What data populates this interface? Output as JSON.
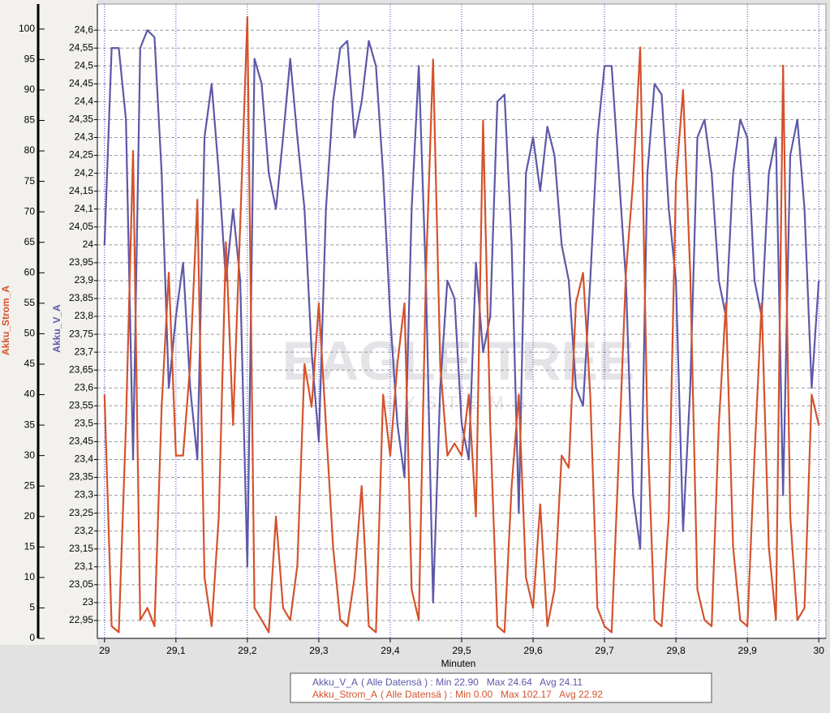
{
  "chart_data": {
    "type": "line",
    "xlabel": "Minuten",
    "ylabel": "Akku_Strom_A",
    "y2label": "Akku_V_A",
    "xlim": [
      28.99,
      30.01
    ],
    "xticks": [
      29,
      {
        "value": 29.1,
        "label": "29,1"
      },
      {
        "value": 29.2,
        "label": "29,2"
      },
      {
        "value": 29.3,
        "label": "29,3"
      },
      {
        "value": 29.4,
        "label": "29,4"
      },
      {
        "value": 29.5,
        "label": "29,5"
      },
      {
        "value": 29.6,
        "label": "29,6"
      },
      {
        "value": 29.7,
        "label": "29,7"
      },
      {
        "value": 29.8,
        "label": "29,8"
      },
      {
        "value": 29.9,
        "label": "29,9"
      },
      30
    ],
    "ylim": [
      0,
      104.1
    ],
    "yticks": [
      0,
      5,
      10,
      15,
      20,
      25,
      30,
      35,
      40,
      45,
      50,
      55,
      60,
      65,
      70,
      75,
      80,
      85,
      90,
      95,
      100
    ],
    "y2lim": [
      22.9,
      24.673
    ],
    "y2ticks": [
      {
        "value": 22.95,
        "label": "22,95"
      },
      23,
      {
        "value": 23.05,
        "label": "23,05"
      },
      {
        "value": 23.1,
        "label": "23,1"
      },
      {
        "value": 23.15,
        "label": "23,15"
      },
      {
        "value": 23.2,
        "label": "23,2"
      },
      {
        "value": 23.25,
        "label": "23,25"
      },
      {
        "value": 23.3,
        "label": "23,3"
      },
      {
        "value": 23.35,
        "label": "23,35"
      },
      {
        "value": 23.4,
        "label": "23,4"
      },
      {
        "value": 23.45,
        "label": "23,45"
      },
      {
        "value": 23.5,
        "label": "23,5"
      },
      {
        "value": 23.55,
        "label": "23,55"
      },
      {
        "value": 23.6,
        "label": "23,6"
      },
      {
        "value": 23.65,
        "label": "23,65"
      },
      {
        "value": 23.7,
        "label": "23,7"
      },
      {
        "value": 23.75,
        "label": "23,75"
      },
      {
        "value": 23.8,
        "label": "23,8"
      },
      {
        "value": 23.85,
        "label": "23,85"
      },
      {
        "value": 23.9,
        "label": "23,9"
      },
      {
        "value": 23.95,
        "label": "23,95"
      },
      24,
      {
        "value": 24.05,
        "label": "24,05"
      },
      {
        "value": 24.1,
        "label": "24,1"
      },
      {
        "value": 24.15,
        "label": "24,15"
      },
      {
        "value": 24.2,
        "label": "24,2"
      },
      {
        "value": 24.25,
        "label": "24,25"
      },
      {
        "value": 24.3,
        "label": "24,3"
      },
      {
        "value": 24.35,
        "label": "24,35"
      },
      {
        "value": 24.4,
        "label": "24,4"
      },
      {
        "value": 24.45,
        "label": "24,45"
      },
      {
        "value": 24.5,
        "label": "24,5"
      },
      {
        "value": 24.55,
        "label": "24,55"
      },
      {
        "value": 24.6,
        "label": "24,6"
      }
    ],
    "grid": true,
    "x": [
      29.0,
      29.01,
      29.02,
      29.03,
      29.04,
      29.05,
      29.06,
      29.07,
      29.08,
      29.09,
      29.1,
      29.11,
      29.12,
      29.13,
      29.14,
      29.15,
      29.16,
      29.17,
      29.18,
      29.19,
      29.2,
      29.21,
      29.22,
      29.23,
      29.24,
      29.25,
      29.26,
      29.27,
      29.28,
      29.29,
      29.3,
      29.31,
      29.32,
      29.33,
      29.34,
      29.35,
      29.36,
      29.37,
      29.38,
      29.39,
      29.4,
      29.41,
      29.42,
      29.43,
      29.44,
      29.45,
      29.46,
      29.47,
      29.48,
      29.49,
      29.5,
      29.51,
      29.52,
      29.53,
      29.54,
      29.55,
      29.56,
      29.57,
      29.58,
      29.59,
      29.6,
      29.61,
      29.62,
      29.63,
      29.64,
      29.65,
      29.66,
      29.67,
      29.68,
      29.69,
      29.7,
      29.71,
      29.72,
      29.73,
      29.74,
      29.75,
      29.76,
      29.77,
      29.78,
      29.79,
      29.8,
      29.81,
      29.82,
      29.83,
      29.84,
      29.85,
      29.86,
      29.87,
      29.88,
      29.89,
      29.9,
      29.91,
      29.92,
      29.93,
      29.94,
      29.95,
      29.96,
      29.97,
      29.98,
      29.99,
      30.0
    ],
    "series": [
      {
        "name": "Akku_V_A",
        "color": "#5d58a8",
        "axis": "y2",
        "summary": "( Alle Datensä ) : Min 22.90   Max 24.64   Avg 24.11",
        "values": [
          24.0,
          24.55,
          24.55,
          24.35,
          23.4,
          24.55,
          24.6,
          24.58,
          24.2,
          23.6,
          23.8,
          23.95,
          23.6,
          23.4,
          24.3,
          24.45,
          24.2,
          23.9,
          24.1,
          23.9,
          23.1,
          24.52,
          24.45,
          24.2,
          24.1,
          24.3,
          24.52,
          24.3,
          24.1,
          23.7,
          23.45,
          24.1,
          24.4,
          24.55,
          24.57,
          24.3,
          24.4,
          24.57,
          24.5,
          24.2,
          23.8,
          23.5,
          23.35,
          24.1,
          24.5,
          23.9,
          23.0,
          23.6,
          23.9,
          23.85,
          23.5,
          23.4,
          23.95,
          23.7,
          23.8,
          24.4,
          24.42,
          24.0,
          23.25,
          24.2,
          24.3,
          24.15,
          24.33,
          24.25,
          24.0,
          23.9,
          23.6,
          23.55,
          23.9,
          24.3,
          24.5,
          24.5,
          24.2,
          23.9,
          23.3,
          23.15,
          24.2,
          24.45,
          24.42,
          24.1,
          23.9,
          23.2,
          23.6,
          24.3,
          24.35,
          24.2,
          23.9,
          23.8,
          24.2,
          24.35,
          24.3,
          23.9,
          23.8,
          24.2,
          24.3,
          23.3,
          24.25,
          24.35,
          24.1,
          23.6,
          23.9
        ]
      },
      {
        "name": "Akku_Strom_A",
        "color": "#d4522c",
        "axis": "y",
        "summary": "( Alle Datensä ) : Min 0.00   Max 102.17   Avg 22.92",
        "values": [
          40,
          2,
          1,
          35,
          80,
          3,
          5,
          2,
          38,
          60,
          30,
          30,
          45,
          72,
          10,
          2,
          20,
          65,
          35,
          68,
          102,
          5,
          3,
          1,
          20,
          5,
          3,
          12,
          45,
          38,
          55,
          35,
          15,
          3,
          2,
          10,
          25,
          2,
          1,
          40,
          30,
          45,
          55,
          8,
          3,
          60,
          95,
          45,
          30,
          32,
          30,
          40,
          20,
          85,
          35,
          2,
          1,
          25,
          40,
          10,
          5,
          22,
          2,
          8,
          30,
          28,
          55,
          60,
          40,
          5,
          2,
          1,
          30,
          60,
          75,
          97,
          35,
          3,
          2,
          20,
          75,
          90,
          60,
          8,
          3,
          2,
          35,
          55,
          15,
          3,
          2,
          30,
          55,
          15,
          3,
          94,
          20,
          3,
          5,
          40,
          35
        ]
      }
    ]
  },
  "watermark": [
    "EAGLE TREE",
    "SYSTEMS"
  ]
}
